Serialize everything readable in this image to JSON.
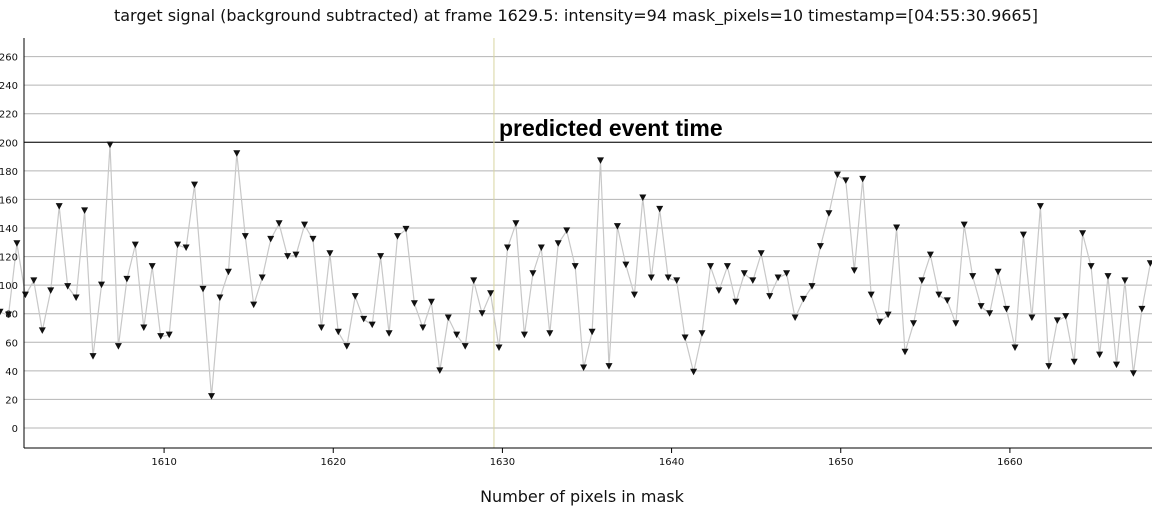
{
  "chart_data": {
    "type": "line",
    "title": "target signal (background subtracted) at frame 1629.5: intensity=94 mask_pixels=10 timestamp=[04:55:30.9665]",
    "xlabel": "Number of pixels in mask",
    "ylabel": "",
    "xlim": [
      1600.3,
      1668.4
    ],
    "ylim": [
      -14,
      273
    ],
    "x_ticks": [
      1610,
      1620,
      1630,
      1640,
      1650,
      1660
    ],
    "y_ticks": [
      0,
      20,
      40,
      60,
      80,
      100,
      120,
      140,
      160,
      180,
      200,
      220,
      240,
      260
    ],
    "grid": true,
    "reference_line_y": 200,
    "event_marker": {
      "x": 1629.5,
      "label": "predicted event time",
      "label_y": 210
    },
    "series": [
      {
        "x": [
          1600.3,
          1600.8,
          1601.3,
          1601.8,
          1602.3,
          1602.8,
          1603.3,
          1603.8,
          1604.3,
          1604.8,
          1605.3,
          1605.8,
          1606.3,
          1606.8,
          1607.3,
          1607.8,
          1608.3,
          1608.8,
          1609.3,
          1609.8,
          1610.3,
          1610.8,
          1611.3,
          1611.8,
          1612.3,
          1612.8,
          1613.3,
          1613.8,
          1614.3,
          1614.8,
          1615.3,
          1615.8,
          1616.3,
          1616.8,
          1617.3,
          1617.8,
          1618.3,
          1618.8,
          1619.3,
          1619.8,
          1620.3,
          1620.8,
          1621.3,
          1621.8,
          1622.3,
          1622.8,
          1623.3,
          1623.8,
          1624.3,
          1624.8,
          1625.3,
          1625.8,
          1626.3,
          1626.8,
          1627.3,
          1627.8,
          1628.3,
          1628.8,
          1629.3,
          1629.8,
          1630.3,
          1630.8,
          1631.3,
          1631.8,
          1632.3,
          1632.8,
          1633.3,
          1633.8,
          1634.3,
          1634.8,
          1635.3,
          1635.8,
          1636.3,
          1636.8,
          1637.3,
          1637.8,
          1638.3,
          1638.8,
          1639.3,
          1639.8,
          1640.3,
          1640.8,
          1641.3,
          1641.8,
          1642.3,
          1642.8,
          1643.3,
          1643.8,
          1644.3,
          1644.8,
          1645.3,
          1645.8,
          1646.3,
          1646.8,
          1647.3,
          1647.8,
          1648.3,
          1648.8,
          1649.3,
          1649.8,
          1650.3,
          1650.8,
          1651.3,
          1651.8,
          1652.3,
          1652.8,
          1653.3,
          1653.8,
          1654.3,
          1654.8,
          1655.3,
          1655.8,
          1656.3,
          1656.8,
          1657.3,
          1657.8,
          1658.3,
          1658.8,
          1659.3,
          1659.8,
          1660.3,
          1660.8,
          1661.3,
          1661.8,
          1662.3,
          1662.8,
          1663.3,
          1663.8,
          1664.3,
          1664.8,
          1665.3,
          1665.8,
          1666.3,
          1666.8,
          1667.3,
          1667.8,
          1668.3
        ],
        "y": [
          81,
          79,
          129,
          93,
          103,
          68,
          96,
          155,
          99,
          91,
          152,
          50,
          100,
          198,
          57,
          104,
          128,
          70,
          113,
          64,
          65,
          128,
          126,
          170,
          97,
          22,
          91,
          109,
          192,
          134,
          86,
          105,
          132,
          143,
          120,
          121,
          142,
          132,
          70,
          122,
          67,
          57,
          92,
          76,
          72,
          120,
          66,
          134,
          139,
          87,
          70,
          88,
          40,
          77,
          65,
          57,
          103,
          80,
          94,
          56,
          126,
          143,
          65,
          108,
          126,
          66,
          129,
          138,
          113,
          42,
          67,
          187,
          43,
          141,
          114,
          93,
          161,
          105,
          153,
          105,
          103,
          63,
          39,
          66,
          113,
          96,
          113,
          88,
          108,
          103,
          122,
          92,
          105,
          108,
          77,
          90,
          99,
          127,
          150,
          177,
          173,
          110,
          174,
          93,
          74,
          79,
          140,
          53,
          73,
          103,
          121,
          93,
          89,
          73,
          142,
          106,
          85,
          80,
          109,
          83,
          56,
          135,
          77,
          155,
          43,
          75,
          78,
          46,
          136,
          113,
          51,
          106,
          44,
          103,
          38,
          83,
          115
        ]
      }
    ]
  }
}
